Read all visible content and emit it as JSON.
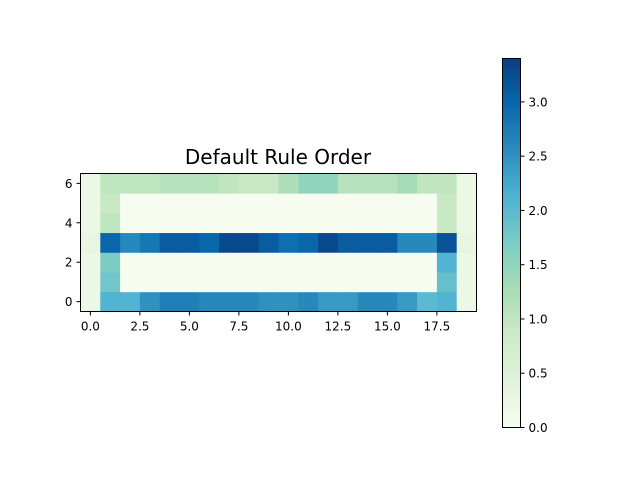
{
  "chart_data": {
    "type": "heatmap",
    "title": "Default Rule Order",
    "xlabel": "",
    "ylabel": "",
    "colormap": "GnBu",
    "colormap_stops": [
      "#f7fcf0",
      "#e0f3db",
      "#ccebc5",
      "#a8ddb5",
      "#7bccc4",
      "#4eb3d3",
      "#2b8cbe",
      "#0868ac",
      "#084081"
    ],
    "vmin": 0.0,
    "vmax": 3.4,
    "xlim": [
      -0.5,
      19.5
    ],
    "ylim": [
      -0.5,
      6.5
    ],
    "x_ticks": [
      0,
      2.5,
      5,
      7.5,
      10,
      12.5,
      15,
      17.5
    ],
    "x_tick_labels": [
      "0.0",
      "2.5",
      "5.0",
      "7.5",
      "10.0",
      "12.5",
      "15.0",
      "17.5"
    ],
    "y_ticks": [
      0,
      2,
      4,
      6
    ],
    "y_tick_labels": [
      "0",
      "2",
      "4",
      "6"
    ],
    "colorbar_ticks": [
      0.0,
      0.5,
      1.0,
      1.5,
      2.0,
      2.5,
      3.0
    ],
    "colorbar_tick_labels": [
      "0.0",
      "0.5",
      "1.0",
      "1.5",
      "2.0",
      "2.5",
      "3.0"
    ],
    "rows_bottom_to_top": [
      [
        0.2,
        2.1,
        2.1,
        2.5,
        2.7,
        2.7,
        2.6,
        2.6,
        2.6,
        2.5,
        2.5,
        2.6,
        2.4,
        2.4,
        2.6,
        2.6,
        2.4,
        2.0,
        2.1,
        0.2
      ],
      [
        0.2,
        1.8,
        0.0,
        0.0,
        0.0,
        0.0,
        0.0,
        0.0,
        0.0,
        0.0,
        0.0,
        0.0,
        0.0,
        0.0,
        0.0,
        0.0,
        0.0,
        0.0,
        1.9,
        0.2
      ],
      [
        0.2,
        1.7,
        0.0,
        0.0,
        0.0,
        0.0,
        0.0,
        0.0,
        0.0,
        0.0,
        0.0,
        0.0,
        0.0,
        0.0,
        0.0,
        0.0,
        0.0,
        0.0,
        2.1,
        0.2
      ],
      [
        0.3,
        3.0,
        2.6,
        2.8,
        3.1,
        3.1,
        3.0,
        3.3,
        3.3,
        3.1,
        2.9,
        3.0,
        3.3,
        3.1,
        3.1,
        3.1,
        2.6,
        2.6,
        3.2,
        0.3
      ],
      [
        0.2,
        1.0,
        0.0,
        0.0,
        0.0,
        0.0,
        0.0,
        0.0,
        0.0,
        0.0,
        0.0,
        0.0,
        0.0,
        0.0,
        0.0,
        0.0,
        0.0,
        0.0,
        0.9,
        0.2
      ],
      [
        0.2,
        0.9,
        0.0,
        0.0,
        0.0,
        0.0,
        0.0,
        0.0,
        0.0,
        0.0,
        0.0,
        0.0,
        0.0,
        0.0,
        0.0,
        0.0,
        0.0,
        0.0,
        0.9,
        0.2
      ],
      [
        0.2,
        1.0,
        1.0,
        1.0,
        1.1,
        1.1,
        1.1,
        1.0,
        0.9,
        0.9,
        1.2,
        1.5,
        1.5,
        1.1,
        1.1,
        1.1,
        1.3,
        1.0,
        1.0,
        0.2
      ]
    ]
  }
}
